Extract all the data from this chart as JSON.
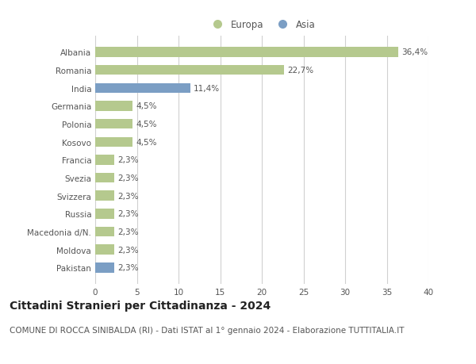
{
  "countries": [
    "Albania",
    "Romania",
    "India",
    "Germania",
    "Polonia",
    "Kosovo",
    "Francia",
    "Svezia",
    "Svizzera",
    "Russia",
    "Macedonia d/N.",
    "Moldova",
    "Pakistan"
  ],
  "values": [
    36.4,
    22.7,
    11.4,
    4.5,
    4.5,
    4.5,
    2.3,
    2.3,
    2.3,
    2.3,
    2.3,
    2.3,
    2.3
  ],
  "labels": [
    "36,4%",
    "22,7%",
    "11,4%",
    "4,5%",
    "4,5%",
    "4,5%",
    "2,3%",
    "2,3%",
    "2,3%",
    "2,3%",
    "2,3%",
    "2,3%",
    "2,3%"
  ],
  "continents": [
    "Europa",
    "Europa",
    "Asia",
    "Europa",
    "Europa",
    "Europa",
    "Europa",
    "Europa",
    "Europa",
    "Europa",
    "Europa",
    "Europa",
    "Asia"
  ],
  "color_europa": "#b5c98e",
  "color_asia": "#7b9ec4",
  "bg_color": "#ffffff",
  "grid_color": "#d0d0d0",
  "xlim": [
    0,
    40
  ],
  "xticks": [
    0,
    5,
    10,
    15,
    20,
    25,
    30,
    35,
    40
  ],
  "title": "Cittadini Stranieri per Cittadinanza - 2024",
  "subtitle": "COMUNE DI ROCCA SINIBALDA (RI) - Dati ISTAT al 1° gennaio 2024 - Elaborazione TUTTITALIA.IT",
  "legend_europa": "Europa",
  "legend_asia": "Asia",
  "bar_height": 0.55,
  "title_fontsize": 10,
  "subtitle_fontsize": 7.5,
  "label_fontsize": 7.5,
  "tick_fontsize": 7.5,
  "legend_fontsize": 8.5,
  "text_color": "#555555"
}
